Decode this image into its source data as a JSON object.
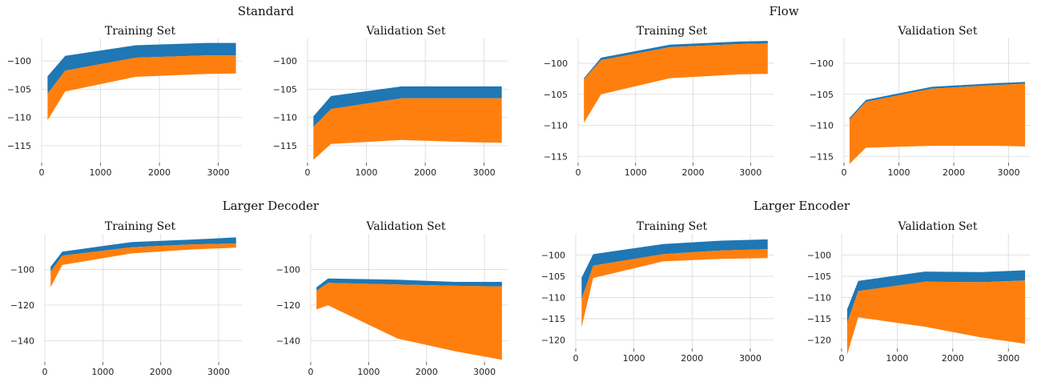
{
  "colors": {
    "band_outer": "#1f77b4",
    "band_inner": "#ff7f0e",
    "grid": "#d9d9d9"
  },
  "chart_data": [
    {
      "group": "Standard",
      "title": "Training Set",
      "type": "area",
      "x": [
        100,
        400,
        1600,
        2800,
        3300
      ],
      "xlim": [
        0,
        3400
      ],
      "xticks": [
        0,
        1000,
        2000,
        3000
      ],
      "ylim": [
        -118,
        -96
      ],
      "yticks": [
        -100,
        -105,
        -110,
        -115
      ],
      "series": [
        {
          "color": "#1f77b4",
          "upper": [
            -102.7,
            -99.1,
            -97.2,
            -96.8,
            -96.8
          ],
          "lower": [
            -105.8,
            -101.7,
            -99.4,
            -99.0,
            -99.0
          ]
        },
        {
          "color": "#ff7f0e",
          "upper": [
            -105.8,
            -101.7,
            -99.4,
            -99.0,
            -99.0
          ],
          "lower": [
            -110.5,
            -105.4,
            -102.8,
            -102.3,
            -102.2
          ]
        }
      ]
    },
    {
      "group": "Standard",
      "title": "Validation Set",
      "type": "area",
      "x": [
        100,
        400,
        1600,
        2800,
        3300
      ],
      "xlim": [
        0,
        3400
      ],
      "xticks": [
        0,
        1000,
        2000,
        3000
      ],
      "ylim": [
        -118,
        -96
      ],
      "yticks": [
        -100,
        -105,
        -110,
        -115
      ],
      "series": [
        {
          "color": "#1f77b4",
          "upper": [
            -109.8,
            -106.2,
            -104.5,
            -104.5,
            -104.5
          ],
          "lower": [
            -111.7,
            -108.5,
            -106.6,
            -106.6,
            -106.6
          ]
        },
        {
          "color": "#ff7f0e",
          "upper": [
            -111.7,
            -108.5,
            -106.6,
            -106.6,
            -106.6
          ],
          "lower": [
            -117.5,
            -114.7,
            -114.0,
            -114.4,
            -114.5
          ]
        }
      ]
    },
    {
      "group": "Flow",
      "title": "Training Set",
      "type": "area",
      "x": [
        100,
        400,
        1600,
        2800,
        3300
      ],
      "xlim": [
        0,
        3400
      ],
      "xticks": [
        0,
        1000,
        2000,
        3000
      ],
      "ylim": [
        -116,
        -96
      ],
      "yticks": [
        -100,
        -105,
        -110,
        -115
      ],
      "series": [
        {
          "color": "#1f77b4",
          "upper": [
            -102.4,
            -99.1,
            -97.0,
            -96.5,
            -96.4
          ],
          "lower": [
            -102.6,
            -99.5,
            -97.4,
            -96.9,
            -96.8
          ]
        },
        {
          "color": "#ff7f0e",
          "upper": [
            -102.6,
            -99.5,
            -97.4,
            -96.9,
            -96.8
          ],
          "lower": [
            -109.6,
            -105.0,
            -102.4,
            -101.8,
            -101.7
          ]
        }
      ]
    },
    {
      "group": "Flow",
      "title": "Validation Set",
      "type": "area",
      "x": [
        100,
        400,
        1600,
        2800,
        3300
      ],
      "xlim": [
        0,
        3400
      ],
      "xticks": [
        0,
        1000,
        2000,
        3000
      ],
      "ylim": [
        -116,
        -96
      ],
      "yticks": [
        -100,
        -105,
        -110,
        -115
      ],
      "series": [
        {
          "color": "#1f77b4",
          "upper": [
            -108.8,
            -105.9,
            -103.8,
            -103.2,
            -103.0
          ],
          "lower": [
            -109.1,
            -106.2,
            -104.1,
            -103.5,
            -103.3
          ]
        },
        {
          "color": "#ff7f0e",
          "upper": [
            -109.1,
            -106.2,
            -104.1,
            -103.5,
            -103.3
          ],
          "lower": [
            -116.2,
            -113.6,
            -113.3,
            -113.3,
            -113.4
          ]
        }
      ]
    },
    {
      "group": "Larger Decoder",
      "title": "Training Set",
      "type": "area",
      "x": [
        100,
        300,
        1500,
        2500,
        3300
      ],
      "xlim": [
        0,
        3400
      ],
      "xticks": [
        0,
        1000,
        2000,
        3000
      ],
      "ylim": [
        -152,
        -80
      ],
      "yticks": [
        -100,
        -120,
        -140
      ],
      "series": [
        {
          "color": "#1f77b4",
          "upper": [
            -98.5,
            -90.0,
            -84.6,
            -83.3,
            -82.0
          ],
          "lower": [
            -101.3,
            -92.3,
            -87.5,
            -86.0,
            -85.4
          ]
        },
        {
          "color": "#ff7f0e",
          "upper": [
            -101.3,
            -92.3,
            -87.5,
            -86.0,
            -85.4
          ],
          "lower": [
            -110.0,
            -97.5,
            -91.0,
            -88.8,
            -87.8
          ]
        }
      ]
    },
    {
      "group": "Larger Decoder",
      "title": "Validation Set",
      "type": "area",
      "x": [
        100,
        300,
        1500,
        2500,
        3300
      ],
      "xlim": [
        0,
        3400
      ],
      "xticks": [
        0,
        1000,
        2000,
        3000
      ],
      "ylim": [
        -152,
        -80
      ],
      "yticks": [
        -100,
        -120,
        -140
      ],
      "series": [
        {
          "color": "#1f77b4",
          "upper": [
            -110.0,
            -105.1,
            -105.8,
            -107.0,
            -107.0
          ],
          "lower": [
            -112.0,
            -107.6,
            -108.5,
            -109.2,
            -109.6
          ]
        },
        {
          "color": "#ff7f0e",
          "upper": [
            -112.0,
            -107.6,
            -108.5,
            -109.2,
            -109.6
          ],
          "lower": [
            -122.5,
            -120.2,
            -138.8,
            -146.0,
            -150.8
          ]
        }
      ]
    },
    {
      "group": "Larger Encoder",
      "title": "Training Set",
      "type": "area",
      "x": [
        100,
        300,
        1500,
        2500,
        3300
      ],
      "xlim": [
        0,
        3400
      ],
      "xticks": [
        0,
        1000,
        2000,
        3000
      ],
      "ylim": [
        -122,
        -95
      ],
      "yticks": [
        -100,
        -105,
        -110,
        -115,
        -120
      ],
      "series": [
        {
          "color": "#1f77b4",
          "upper": [
            -105.3,
            -99.8,
            -97.4,
            -96.6,
            -96.3
          ],
          "lower": [
            -110.4,
            -102.5,
            -99.8,
            -98.9,
            -98.6
          ]
        },
        {
          "color": "#ff7f0e",
          "upper": [
            -110.4,
            -102.5,
            -99.8,
            -98.9,
            -98.6
          ],
          "lower": [
            -117.0,
            -105.4,
            -101.5,
            -100.9,
            -100.7
          ]
        }
      ]
    },
    {
      "group": "Larger Encoder",
      "title": "Validation Set",
      "type": "area",
      "x": [
        100,
        300,
        1500,
        2500,
        3300
      ],
      "xlim": [
        0,
        3400
      ],
      "xticks": [
        0,
        1000,
        2000,
        3000
      ],
      "ylim": [
        -122,
        -95
      ],
      "yticks": [
        -100,
        -105,
        -110,
        -115,
        -120
      ],
      "series": [
        {
          "color": "#1f77b4",
          "upper": [
            -112.8,
            -106.1,
            -103.9,
            -104.0,
            -103.6
          ],
          "lower": [
            -116.0,
            -108.5,
            -106.3,
            -106.4,
            -106.0
          ]
        },
        {
          "color": "#ff7f0e",
          "upper": [
            -116.0,
            -108.5,
            -106.3,
            -106.4,
            -106.0
          ],
          "lower": [
            -123.5,
            -114.7,
            -116.9,
            -119.4,
            -120.9
          ]
        }
      ]
    }
  ]
}
